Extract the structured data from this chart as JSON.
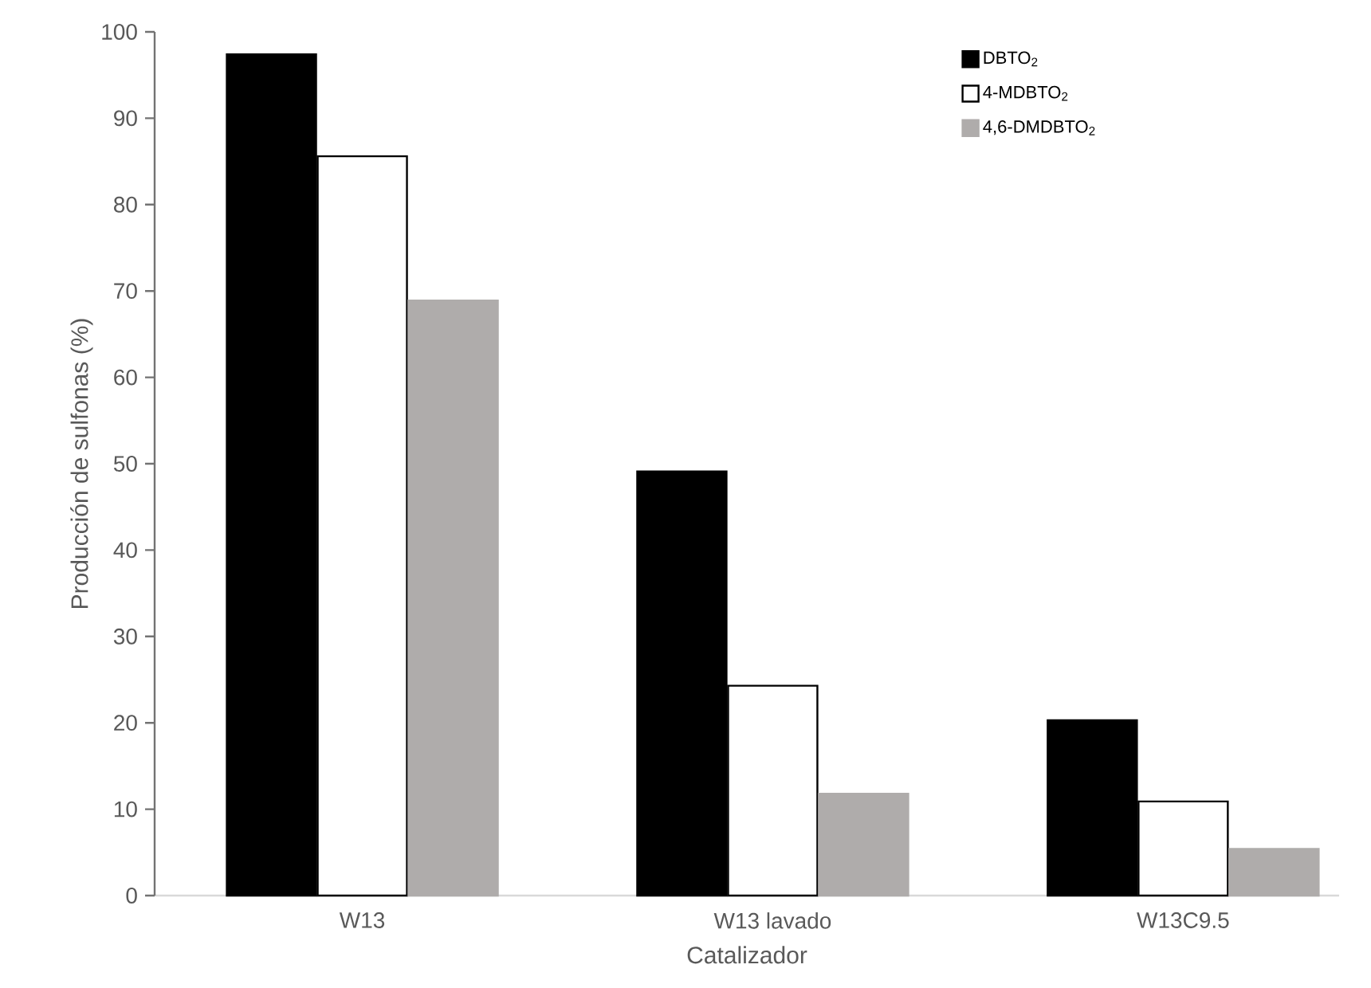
{
  "chart_data": {
    "type": "bar",
    "xlabel": "Catalizador",
    "ylabel": "Producción de sulfonas (%)",
    "categories": [
      "W13",
      "W13 lavado",
      "W13C9.5"
    ],
    "series": [
      {
        "name": "DBTO$_{2}$",
        "color": "#000000",
        "values": [
          97.4,
          49.1,
          20.3
        ]
      },
      {
        "name": "4-MDBTO$_{2}$",
        "color": "#ffffff",
        "values": [
          85.6,
          24.3,
          10.9
        ]
      },
      {
        "name": "4,6-DMDBTO$_{2}$",
        "color": "#afacab",
        "values": [
          68.9,
          11.8,
          5.4
        ]
      }
    ],
    "ylim": [
      0,
      100
    ],
    "yticks": [
      0,
      10,
      20,
      30,
      40,
      50,
      60,
      70,
      80,
      90,
      100
    ],
    "legend": "top right"
  }
}
